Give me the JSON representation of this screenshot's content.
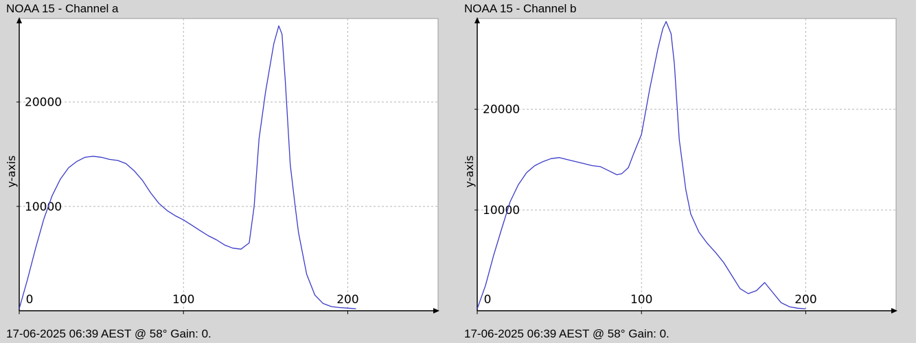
{
  "chart_data": [
    {
      "type": "line",
      "title": "NOAA 15 - Channel a",
      "footer": "17-06-2025 06:39 AEST @ 58° Gain: 0.",
      "ylabel": "y-axis",
      "xlabel": "",
      "xlim": [
        0,
        255
      ],
      "ylim": [
        0,
        28000
      ],
      "xticks": [
        0,
        100,
        200
      ],
      "yticks": [
        10000,
        20000
      ],
      "grid": true,
      "color": "#3a3ac8",
      "series": [
        {
          "x": [
            0,
            5,
            10,
            15,
            20,
            25,
            30,
            35,
            40,
            45,
            50,
            55,
            60,
            65,
            70,
            75,
            80,
            85,
            90,
            95,
            100,
            105,
            110,
            115,
            120,
            125,
            130,
            135,
            140,
            143,
            146,
            150,
            155,
            158,
            160,
            162,
            165,
            168,
            170,
            175,
            180,
            185,
            190,
            195,
            200,
            205
          ],
          "y": [
            200,
            3000,
            6000,
            8800,
            11000,
            12600,
            13700,
            14300,
            14700,
            14800,
            14700,
            14500,
            14400,
            14100,
            13400,
            12500,
            11300,
            10300,
            9600,
            9100,
            8700,
            8200,
            7700,
            7200,
            6800,
            6300,
            6000,
            5900,
            6500,
            10000,
            16500,
            21000,
            25600,
            27300,
            26500,
            22000,
            14000,
            10000,
            7500,
            3500,
            1500,
            700,
            400,
            300,
            250,
            200
          ]
        }
      ]
    },
    {
      "type": "line",
      "title": "NOAA 15 - Channel b",
      "footer": "17-06-2025 06:39 AEST @ 58° Gain: 0.",
      "ylabel": "y-axis",
      "xlabel": "",
      "xlim": [
        0,
        255
      ],
      "ylim": [
        0,
        29000
      ],
      "xticks": [
        0,
        100,
        200
      ],
      "yticks": [
        10000,
        20000
      ],
      "grid": true,
      "color": "#3a3ac8",
      "series": [
        {
          "x": [
            0,
            5,
            10,
            15,
            20,
            25,
            30,
            35,
            40,
            45,
            50,
            55,
            60,
            65,
            70,
            75,
            80,
            85,
            88,
            92,
            95,
            100,
            105,
            110,
            113,
            115,
            118,
            120,
            123,
            127,
            130,
            135,
            140,
            145,
            150,
            155,
            160,
            165,
            170,
            175,
            180,
            185,
            190,
            195,
            200
          ],
          "y": [
            200,
            2500,
            5500,
            8200,
            10800,
            12500,
            13700,
            14400,
            14800,
            15100,
            15200,
            15000,
            14800,
            14600,
            14400,
            14300,
            13900,
            13500,
            13600,
            14200,
            15500,
            17500,
            22000,
            26000,
            28000,
            28700,
            27500,
            24500,
            17000,
            12000,
            9600,
            7800,
            6700,
            5800,
            4800,
            3500,
            2200,
            1700,
            2000,
            2800,
            1800,
            800,
            400,
            250,
            200
          ]
        }
      ]
    }
  ]
}
